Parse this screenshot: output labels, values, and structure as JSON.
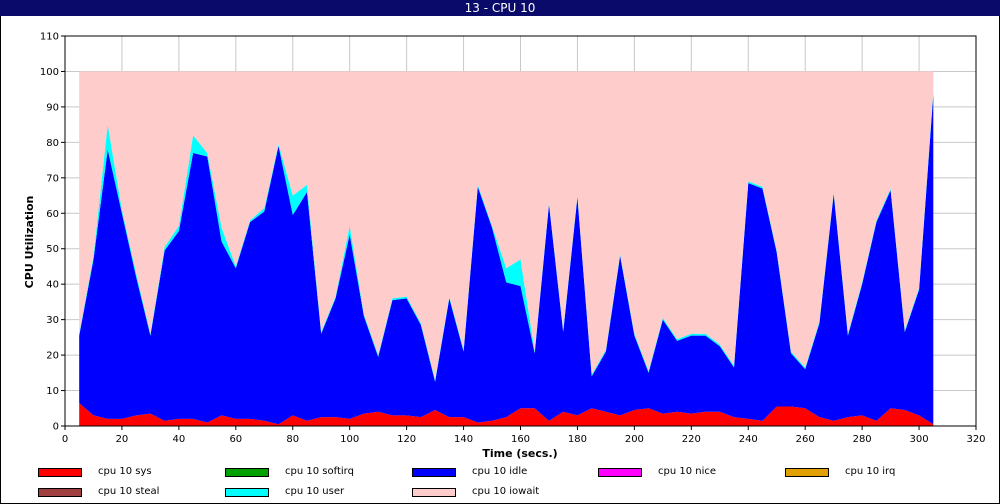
{
  "window": {
    "title": "13 - CPU 10"
  },
  "chart_data": {
    "type": "area",
    "stacked": true,
    "title": "13 - CPU 10",
    "xlabel": "Time (secs.)",
    "ylabel": "CPU Utilization",
    "xlim": [
      0,
      320
    ],
    "ylim": [
      0,
      110
    ],
    "xticks": [
      0,
      20,
      40,
      60,
      80,
      100,
      120,
      140,
      160,
      180,
      200,
      220,
      240,
      260,
      280,
      300,
      320
    ],
    "yticks": [
      0,
      10,
      20,
      30,
      40,
      50,
      60,
      70,
      80,
      90,
      100,
      110
    ],
    "grid": true,
    "legend_position": "bottom",
    "x": [
      5,
      10,
      15,
      20,
      25,
      30,
      35,
      40,
      45,
      50,
      55,
      60,
      65,
      70,
      75,
      80,
      85,
      90,
      95,
      100,
      105,
      110,
      115,
      120,
      125,
      130,
      135,
      140,
      145,
      150,
      155,
      160,
      165,
      170,
      175,
      180,
      185,
      190,
      195,
      200,
      205,
      210,
      215,
      220,
      225,
      230,
      235,
      240,
      245,
      250,
      255,
      260,
      265,
      270,
      275,
      280,
      285,
      290,
      295,
      300,
      305
    ],
    "series": [
      {
        "name": "cpu 10 sys",
        "color": "#ff0000",
        "values": [
          6.5,
          3,
          2,
          2,
          3,
          3.5,
          1.5,
          2,
          2,
          1,
          3,
          2,
          2,
          1.5,
          0.5,
          3,
          1.5,
          2.5,
          2.5,
          2,
          3.5,
          4,
          3,
          3,
          2.5,
          4.5,
          2.5,
          2.5,
          1,
          1.5,
          2.5,
          5,
          5,
          1.5,
          4,
          3,
          5,
          4,
          3,
          4.5,
          5,
          3.5,
          4,
          3.5,
          4,
          4,
          2.5,
          2,
          1.5,
          5.5,
          5.5,
          5,
          2.5,
          1.5,
          2.5,
          3,
          1.5,
          5,
          4.5,
          3,
          0.5
        ]
      },
      {
        "name": "cpu 10 softirq",
        "color": "#00a000",
        "values": [
          0,
          0,
          0,
          0,
          0,
          0,
          0,
          0,
          0,
          0,
          0,
          0,
          0,
          0,
          0,
          0,
          0,
          0,
          0,
          0,
          0,
          0,
          0,
          0,
          0,
          0,
          0,
          0,
          0,
          0,
          0,
          0,
          0,
          0,
          0,
          0,
          0,
          0,
          0,
          0,
          0,
          0,
          0,
          0,
          0,
          0,
          0,
          0,
          0,
          0,
          0,
          0,
          0,
          0,
          0,
          0,
          0,
          0,
          0,
          0,
          0
        ]
      },
      {
        "name": "cpu 10 idle",
        "color": "#0000ff",
        "values": [
          19,
          44,
          76,
          58,
          39,
          22,
          48,
          53,
          75,
          75,
          49,
          42.5,
          55.5,
          59,
          78.5,
          56.5,
          64.5,
          23.5,
          33.5,
          52,
          27.5,
          15.5,
          32.5,
          33,
          26,
          8,
          33.5,
          18.5,
          66.5,
          54.5,
          38,
          34.5,
          15.5,
          61,
          22.5,
          61.5,
          9,
          17,
          45,
          21,
          10,
          26.5,
          20,
          22,
          21.5,
          18.5,
          14,
          66.5,
          65.5,
          43.5,
          15,
          11,
          26.5,
          64,
          23,
          37,
          56,
          61.5,
          22,
          35.5,
          93
        ]
      },
      {
        "name": "cpu 10 nice",
        "color": "#ff00ff",
        "values": [
          0,
          0,
          0,
          0,
          0,
          0,
          0,
          0,
          0,
          0,
          0,
          0,
          0,
          0,
          0,
          0,
          0,
          0,
          0,
          0,
          0,
          0,
          0,
          0,
          0,
          0,
          0,
          0,
          0,
          0,
          0,
          0,
          0,
          0,
          0,
          0,
          0,
          0,
          0,
          0,
          0,
          0,
          0,
          0,
          0,
          0,
          0,
          0,
          0,
          0,
          0,
          0,
          0,
          0,
          0,
          0,
          0,
          0,
          0,
          0,
          0
        ]
      },
      {
        "name": "cpu 10 irq",
        "color": "#e0a000",
        "values": [
          0,
          0,
          0,
          0,
          0,
          0,
          0,
          0,
          0,
          0,
          0,
          0,
          0,
          0,
          0,
          0,
          0,
          0,
          0,
          0,
          0,
          0,
          0,
          0,
          0,
          0,
          0,
          0,
          0,
          0,
          0,
          0,
          0,
          0,
          0,
          0,
          0,
          0,
          0,
          0,
          0,
          0,
          0,
          0,
          0,
          0,
          0,
          0,
          0,
          0,
          0,
          0,
          0,
          0,
          0,
          0,
          0,
          0,
          0,
          0,
          0
        ]
      },
      {
        "name": "cpu 10 steal",
        "color": "#a04040",
        "values": [
          0,
          0,
          0,
          0,
          0,
          0,
          0,
          0,
          0,
          0,
          0,
          0,
          0,
          0,
          0,
          0,
          0,
          0,
          0,
          0,
          0,
          0,
          0,
          0,
          0,
          0,
          0,
          0,
          0,
          0,
          0,
          0,
          0,
          0,
          0,
          0,
          0,
          0,
          0,
          0,
          0,
          0,
          0,
          0,
          0,
          0,
          0,
          0,
          0,
          0,
          0,
          0,
          0,
          0,
          0,
          0,
          0,
          0,
          0,
          0,
          0
        ]
      },
      {
        "name": "cpu 10 user",
        "color": "#00ffff",
        "values": [
          0.5,
          1,
          7,
          1,
          1,
          0.5,
          1,
          1.5,
          5,
          1,
          4,
          0.5,
          0.5,
          1,
          0.5,
          5.5,
          2,
          0.5,
          0.5,
          2.5,
          0.5,
          0.5,
          0.5,
          0.5,
          0.5,
          0.5,
          0.5,
          0.5,
          0.5,
          0.5,
          4,
          7.5,
          0.5,
          0.5,
          0.5,
          0.5,
          0.5,
          0.5,
          0.5,
          0.5,
          0.5,
          0.5,
          0.5,
          0.5,
          0.5,
          0.5,
          0.5,
          0.5,
          0.5,
          0.5,
          0.5,
          0.5,
          0.5,
          0.5,
          0.5,
          0.5,
          0.5,
          0.5,
          0.5,
          0.5,
          1
        ]
      },
      {
        "name": "cpu 10 iowait",
        "color": "#ffcccc",
        "values": [
          74,
          52,
          15,
          39,
          57,
          74,
          49.5,
          43.5,
          18,
          23,
          44,
          55,
          42,
          38.5,
          20.5,
          35,
          32,
          73.5,
          63.5,
          43.5,
          68.5,
          80,
          64,
          63.5,
          71,
          87,
          63.5,
          78.5,
          32,
          43.5,
          55.5,
          53,
          79,
          37,
          73,
          35,
          85.5,
          78.5,
          51.5,
          74,
          84.5,
          69.5,
          75.5,
          74,
          74,
          77,
          83,
          31,
          32.5,
          50.5,
          79,
          83.5,
          70.5,
          34,
          74,
          59.5,
          42,
          33,
          73,
          61,
          5.5
        ]
      }
    ]
  }
}
